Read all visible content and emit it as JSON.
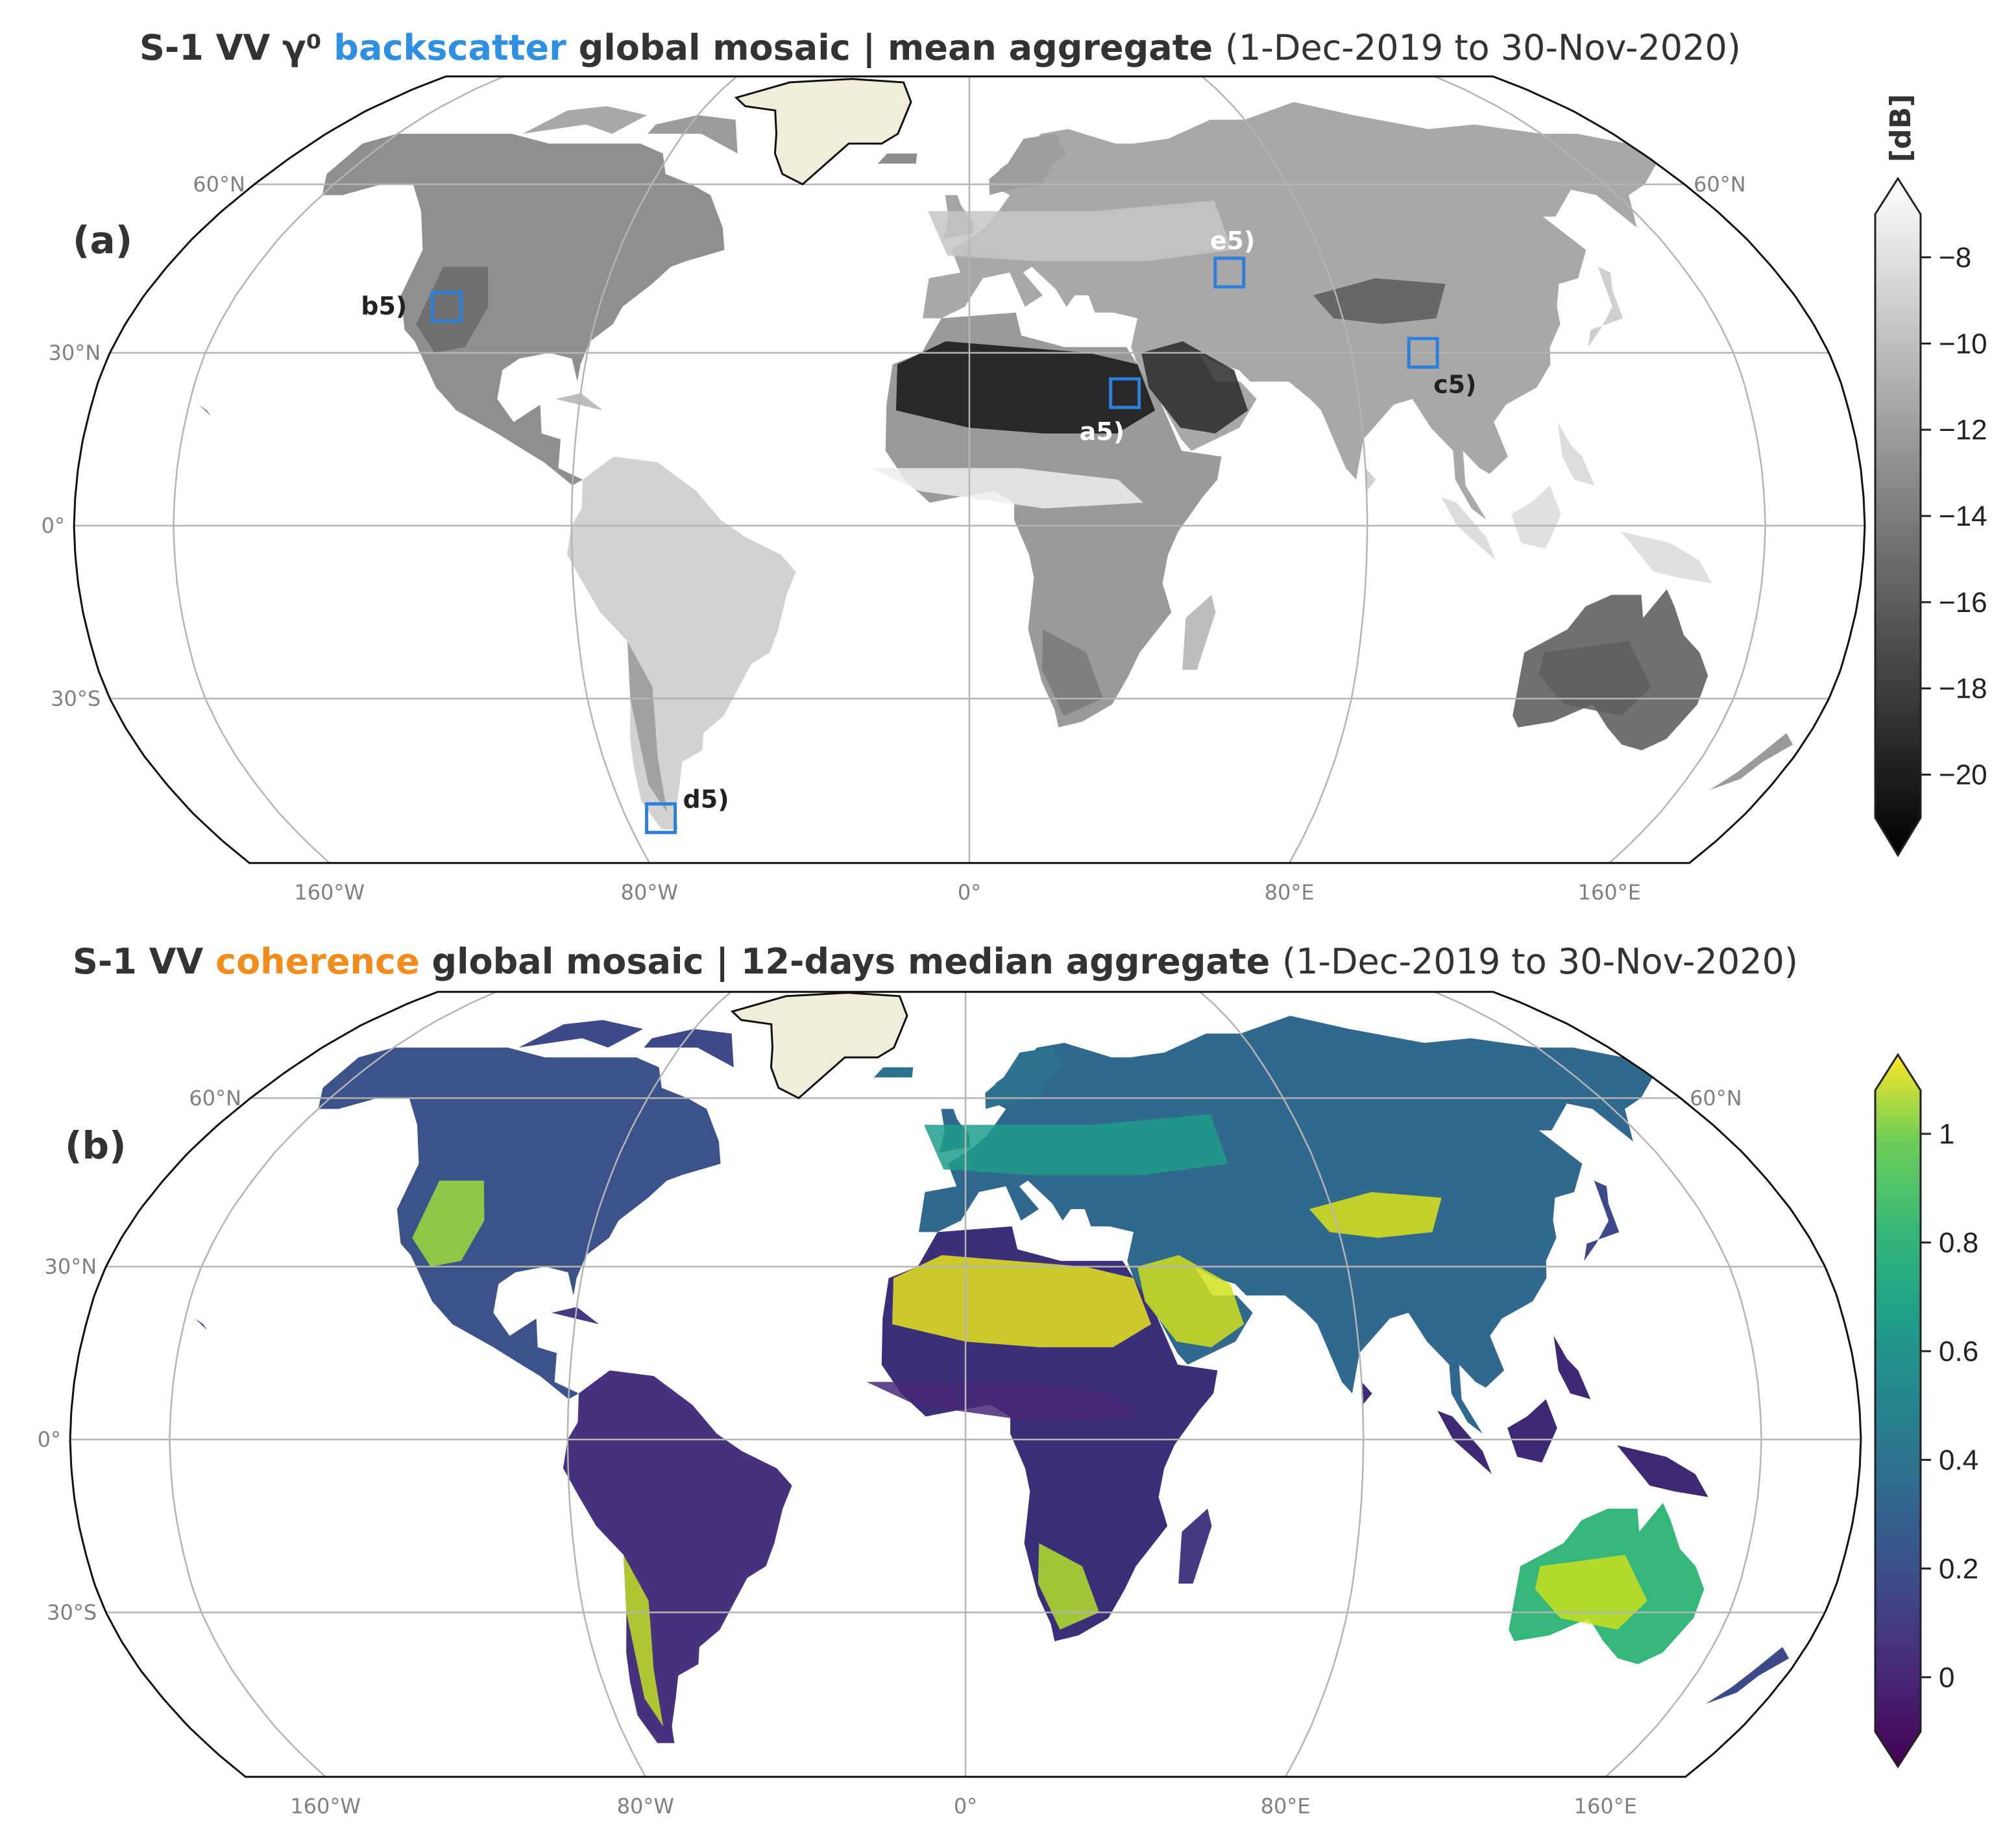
{
  "panels": [
    {
      "label": "(a)",
      "title": {
        "prefix": "S-1 VV γ⁰ ",
        "highlight": "backscatter",
        "highlight_color": "#2f8fe0",
        "main": " global mosaic | mean aggregate ",
        "period": "(1-Dec-2019 to 30-Nov-2020)"
      },
      "colormap": "grays",
      "colorbar": {
        "unit": "[dB]",
        "ticks": [
          "−8",
          "−10",
          "−12",
          "−14",
          "−16",
          "−18",
          "−20"
        ],
        "range": [
          -21,
          -7
        ],
        "extend": "both"
      },
      "regions": [
        {
          "label": "a5)",
          "lon": 32,
          "lat": 23,
          "label_color": "#ffffff"
        },
        {
          "label": "b5)",
          "lon": -113,
          "lat": 38,
          "label_color": "#222222"
        },
        {
          "label": "c5)",
          "lon": 95,
          "lat": 30,
          "label_color": "#222222"
        },
        {
          "label": "d5)",
          "lon": -72,
          "lat": -51,
          "label_color": "#222222"
        },
        {
          "label": "e5)",
          "lon": 58,
          "lat": 44,
          "label_color": "#ffffff"
        }
      ]
    },
    {
      "label": "(b)",
      "title": {
        "prefix": "S-1 VV ",
        "highlight": "coherence",
        "highlight_color": "#f28c1c",
        "main": " global mosaic | 12-days median aggregate ",
        "period": "(1-Dec-2019 to 30-Nov-2020)"
      },
      "colormap": "viridis",
      "colorbar": {
        "unit": "",
        "ticks": [
          "1",
          "0.8",
          "0.6",
          "0.4",
          "0.2",
          "0"
        ],
        "range": [
          -0.1,
          1.08
        ],
        "extend": "both"
      },
      "regions": []
    }
  ],
  "axes": {
    "lat_labels_left": [
      "60°N",
      "30°N",
      "0°",
      "30°S"
    ],
    "lat_labels_right": [
      "60°N"
    ],
    "lon_labels_bottom": [
      "160°W",
      "80°W",
      "0°",
      "80°E",
      "160°E"
    ]
  },
  "colors": {
    "greenland": "#efecd9",
    "grid": "#b4b4b4",
    "roi_box": "#2d7fd9"
  }
}
